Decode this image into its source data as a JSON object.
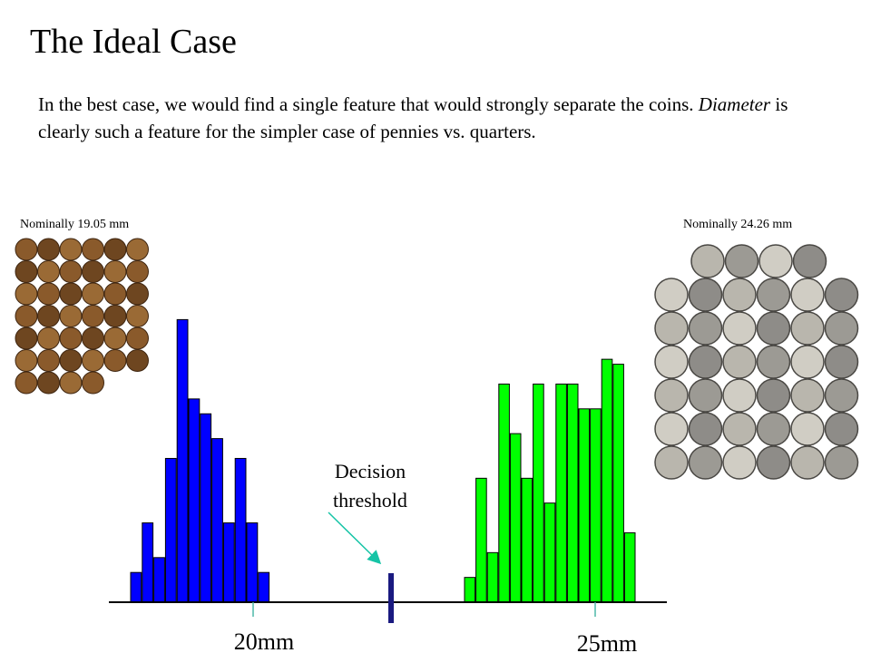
{
  "slide": {
    "title": "The Ideal Case",
    "intro_part1": "In the best case, we would find a single feature that would strongly separate the coins. ",
    "intro_emph": "Diameter",
    "intro_part2": " is clearly such a feature for the simpler case of pennies vs. quarters."
  },
  "images": {
    "pennies_caption": "Nominally 19.05 mm",
    "quarters_caption": "Nominally 24.26 mm"
  },
  "annotation": {
    "line1": "Decision",
    "line2": "threshold"
  },
  "chart_data": {
    "type": "bar",
    "x_tick_labels": [
      "20mm",
      "25mm"
    ],
    "series": [
      {
        "color": "#0000ff",
        "values": [
          3,
          8,
          4.5,
          14.5,
          28.5,
          20.5,
          19,
          16.5,
          8,
          14.5,
          8,
          3
        ]
      },
      {
        "color": "#00ff00",
        "values": [
          2.5,
          12.5,
          5,
          22,
          17,
          12.5,
          22,
          10,
          22,
          22,
          19.5,
          19.5,
          24.5,
          24,
          7
        ]
      }
    ],
    "threshold": {
      "color": "#1a1a80"
    },
    "ylim": [
      0,
      30
    ]
  }
}
